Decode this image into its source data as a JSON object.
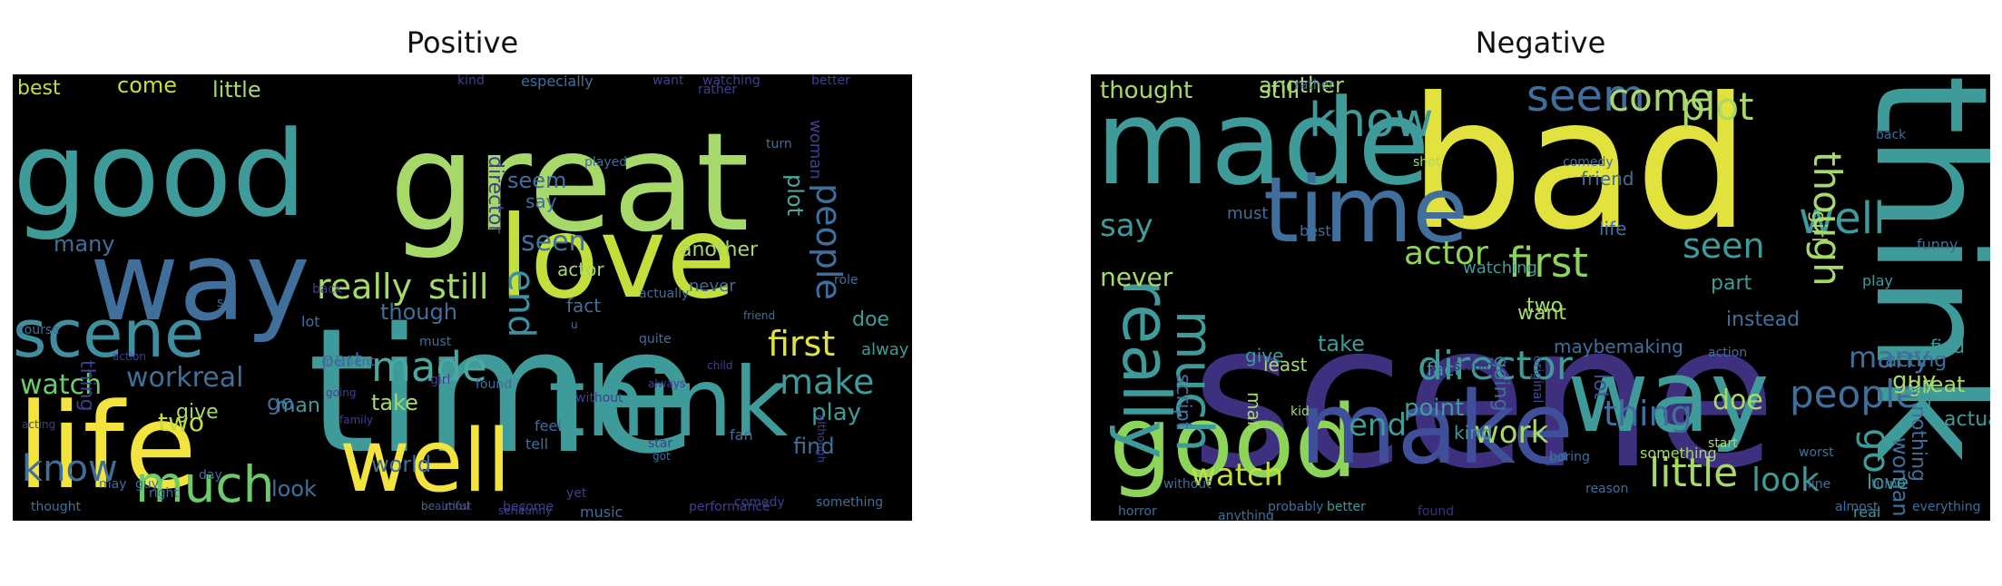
{
  "figure": {
    "panels": [
      {
        "title": "Positive",
        "words": [
          {
            "text": "time",
            "color": "#3f9a9a"
          },
          {
            "text": "great",
            "color": "#a6d96a"
          },
          {
            "text": "good",
            "color": "#3f9a9a"
          },
          {
            "text": "love",
            "color": "#c2df3b"
          },
          {
            "text": "life",
            "color": "#f2e33f"
          },
          {
            "text": "way",
            "color": "#3f6f9a"
          },
          {
            "text": "think",
            "color": "#3f9a9a"
          },
          {
            "text": "well",
            "color": "#f2e33f"
          },
          {
            "text": "scene",
            "color": "#3f8fa0"
          },
          {
            "text": "much",
            "color": "#6ccc6a"
          },
          {
            "text": "made",
            "color": "#4aa8a0"
          },
          {
            "text": "really",
            "color": "#a6d96a"
          },
          {
            "text": "still",
            "color": "#a6d96a"
          },
          {
            "text": "first",
            "color": "#e2e23f"
          },
          {
            "text": "make",
            "color": "#3f9a9a"
          },
          {
            "text": "people",
            "color": "#3f6f9a"
          },
          {
            "text": "know",
            "color": "#3f6f9a"
          },
          {
            "text": "end",
            "color": "#3f8fa0"
          },
          {
            "text": "seen",
            "color": "#3f6f9a"
          },
          {
            "text": "workreal",
            "color": "#3f6f9a"
          },
          {
            "text": "watch",
            "color": "#6ccc6a"
          },
          {
            "text": "two",
            "color": "#c2df3b"
          },
          {
            "text": "play",
            "color": "#3f9a9a"
          },
          {
            "text": "find",
            "color": "#3f6f9a"
          },
          {
            "text": "take",
            "color": "#a6d96a"
          },
          {
            "text": "though",
            "color": "#3f6f9a"
          },
          {
            "text": "man",
            "color": "#3f9a9a"
          },
          {
            "text": "give",
            "color": "#a6d96a"
          },
          {
            "text": "look",
            "color": "#3f6f9a"
          },
          {
            "text": "world",
            "color": "#3f6f9a"
          },
          {
            "text": "many",
            "color": "#3f6f9a"
          },
          {
            "text": "thing",
            "color": "#3f3f8f"
          },
          {
            "text": "best",
            "color": "#c2df3b"
          },
          {
            "text": "come",
            "color": "#c2df3b"
          },
          {
            "text": "little",
            "color": "#a6d96a"
          },
          {
            "text": "seem",
            "color": "#3f6f9a"
          },
          {
            "text": "say",
            "color": "#3f6f9a"
          },
          {
            "text": "plot",
            "color": "#4aa8a0"
          },
          {
            "text": "another",
            "color": "#a6d96a"
          },
          {
            "text": "part",
            "color": "#3f6f9a"
          },
          {
            "text": "director",
            "color": "#3f3f8f"
          },
          {
            "text": "actor",
            "color": "#a6d96a"
          },
          {
            "text": "doe",
            "color": "#3f9a9a"
          },
          {
            "text": "go",
            "color": "#3f6f9a"
          },
          {
            "text": "alway",
            "color": "#3f9a9a"
          },
          {
            "text": "never",
            "color": "#3f6f9a"
          },
          {
            "text": "fact",
            "color": "#3f6f9a"
          },
          {
            "text": "woman",
            "color": "#3f3f8f"
          },
          {
            "text": "lot",
            "color": "#3f6f9a"
          },
          {
            "text": "right",
            "color": "#3f6f9a"
          },
          {
            "text": "feel",
            "color": "#3f6f9a"
          },
          {
            "text": "tell",
            "color": "#3f6f9a"
          },
          {
            "text": "may",
            "color": "#3f6f9a"
          },
          {
            "text": "day",
            "color": "#3f6f9a"
          },
          {
            "text": "guy",
            "color": "#3f6f9a"
          },
          {
            "text": "course",
            "color": "#3f6f9a"
          },
          {
            "text": "role",
            "color": "#3f6f9a"
          },
          {
            "text": "fan",
            "color": "#3f6f9a"
          },
          {
            "text": "music",
            "color": "#3f6f9a"
          },
          {
            "text": "performance",
            "color": "#3f3f8f"
          },
          {
            "text": "comedy",
            "color": "#3f3f8f"
          },
          {
            "text": "something",
            "color": "#3f6f9a"
          },
          {
            "text": "thought",
            "color": "#3f6f9a"
          },
          {
            "text": "beautiful",
            "color": "#3f6f9a"
          },
          {
            "text": "almost",
            "color": "#3f3f8f"
          },
          {
            "text": "serie",
            "color": "#3f3f8f"
          },
          {
            "text": "funny",
            "color": "#3f3f8f"
          },
          {
            "text": "family",
            "color": "#3f3f8f"
          },
          {
            "text": "quite",
            "color": "#3f6f9a"
          },
          {
            "text": "actually",
            "color": "#3f6f9a"
          },
          {
            "text": "must",
            "color": "#3f6f9a"
          },
          {
            "text": "moment",
            "color": "#3f6f9a"
          },
          {
            "text": "found",
            "color": "#3f6f9a"
          },
          {
            "text": "girl",
            "color": "#3f3f8f"
          },
          {
            "text": "yet",
            "color": "#3f3f8f"
          },
          {
            "text": "got",
            "color": "#3f6f9a"
          },
          {
            "text": "action",
            "color": "#3f3f8f"
          },
          {
            "text": "acting",
            "color": "#3f3f8f"
          },
          {
            "text": "always",
            "color": "#3f3f8f"
          },
          {
            "text": "going",
            "color": "#3f3f8f"
          },
          {
            "text": "although",
            "color": "#3f3f8f"
          },
          {
            "text": "child",
            "color": "#3f3f8f"
          },
          {
            "text": "friend",
            "color": "#3f6f9a"
          },
          {
            "text": "especially",
            "color": "#3f6f9a"
          },
          {
            "text": "rather",
            "color": "#3f3f8f"
          },
          {
            "text": "want",
            "color": "#3f3f8f"
          },
          {
            "text": "watching",
            "color": "#3f3f8f"
          },
          {
            "text": "better",
            "color": "#3f3f8f"
          },
          {
            "text": "turn",
            "color": "#3f6f9a"
          },
          {
            "text": "played",
            "color": "#3f6f9a"
          },
          {
            "text": "set",
            "color": "#3f6f9a"
          },
          {
            "text": "back",
            "color": "#3f3f8f"
          },
          {
            "text": "kind",
            "color": "#3f3f8f"
          },
          {
            "text": "become",
            "color": "#3f3f8f"
          },
          {
            "text": "without",
            "color": "#3f3f8f"
          },
          {
            "text": "star",
            "color": "#3f3f8f"
          },
          {
            "text": "u",
            "color": "#3f6f9a"
          }
        ]
      },
      {
        "title": "Negative",
        "words": [
          {
            "text": "scene",
            "color": "#3f2f7f"
          },
          {
            "text": "bad",
            "color": "#e2e23f"
          },
          {
            "text": "think",
            "color": "#3f9a9a"
          },
          {
            "text": "made",
            "color": "#3f9a9a"
          },
          {
            "text": "good",
            "color": "#8cd45a"
          },
          {
            "text": "make",
            "color": "#3f4f9a"
          },
          {
            "text": "way",
            "color": "#3f9a9a"
          },
          {
            "text": "time",
            "color": "#3f6f9a"
          },
          {
            "text": "really",
            "color": "#3f9a9a"
          },
          {
            "text": "much",
            "color": "#3f9a9a"
          },
          {
            "text": "know",
            "color": "#3f9a9a"
          },
          {
            "text": "seem",
            "color": "#3f6f9a"
          },
          {
            "text": "come",
            "color": "#a6d96a"
          },
          {
            "text": "plot",
            "color": "#a6d96a"
          },
          {
            "text": "well",
            "color": "#3f9a9a"
          },
          {
            "text": "first",
            "color": "#8cd45a"
          },
          {
            "text": "actor",
            "color": "#8cd45a"
          },
          {
            "text": "seen",
            "color": "#3f9a9a"
          },
          {
            "text": "though",
            "color": "#a6d96a"
          },
          {
            "text": "director",
            "color": "#3f9a9a"
          },
          {
            "text": "end",
            "color": "#3f9a9a"
          },
          {
            "text": "work",
            "color": "#a6d96a"
          },
          {
            "text": "watch",
            "color": "#c2df3b"
          },
          {
            "text": "little",
            "color": "#a6d96a"
          },
          {
            "text": "look",
            "color": "#3f9a9a"
          },
          {
            "text": "people",
            "color": "#3f6f9a"
          },
          {
            "text": "thing",
            "color": "#3f6f9a"
          },
          {
            "text": "go",
            "color": "#3f9a9a"
          },
          {
            "text": "doe",
            "color": "#a6d96a"
          },
          {
            "text": "say",
            "color": "#3f9a9a"
          },
          {
            "text": "never",
            "color": "#a6d96a"
          },
          {
            "text": "thought",
            "color": "#a6d96a"
          },
          {
            "text": "still",
            "color": "#a6d96a"
          },
          {
            "text": "another",
            "color": "#a6d96a"
          },
          {
            "text": "woman",
            "color": "#3f6f9a"
          },
          {
            "text": "many",
            "color": "#3f6f9a"
          },
          {
            "text": "great",
            "color": "#a6d96a"
          },
          {
            "text": "actually",
            "color": "#3f9a9a"
          },
          {
            "text": "guy",
            "color": "#a6d96a"
          },
          {
            "text": "find",
            "color": "#3f9a9a"
          },
          {
            "text": "part",
            "color": "#3f9a9a"
          },
          {
            "text": "girl",
            "color": "#a6d96a"
          },
          {
            "text": "want",
            "color": "#a6d96a"
          },
          {
            "text": "two",
            "color": "#a6d96a"
          },
          {
            "text": "least",
            "color": "#a6d96a"
          },
          {
            "text": "take",
            "color": "#3f9a9a"
          },
          {
            "text": "fact",
            "color": "#3f9a9a"
          },
          {
            "text": "point",
            "color": "#3f9a9a"
          },
          {
            "text": "kind",
            "color": "#3f9a9a"
          },
          {
            "text": "lot",
            "color": "#3f4f9a"
          },
          {
            "text": "give",
            "color": "#3f9a9a"
          },
          {
            "text": "man",
            "color": "#a6d96a"
          },
          {
            "text": "instead",
            "color": "#3f6f9a"
          },
          {
            "text": "script",
            "color": "#3f6f9a"
          },
          {
            "text": "maybemaking",
            "color": "#3f6f9a"
          },
          {
            "text": "going",
            "color": "#3f6f9a"
          },
          {
            "text": "watching",
            "color": "#3f9a9a"
          },
          {
            "text": "life",
            "color": "#3f6f9a"
          },
          {
            "text": "friend",
            "color": "#3f6f9a"
          },
          {
            "text": "play",
            "color": "#3f9a9a"
          },
          {
            "text": "funny",
            "color": "#3f6f9a"
          },
          {
            "text": "acting",
            "color": "#3f6f9a"
          },
          {
            "text": "nothing",
            "color": "#3f6f9a"
          },
          {
            "text": "set",
            "color": "#3f9a9a"
          },
          {
            "text": "real",
            "color": "#3f9a9a"
          },
          {
            "text": "love",
            "color": "#3f9a9a"
          },
          {
            "text": "something",
            "color": "#a6d96a"
          },
          {
            "text": "anything",
            "color": "#3f6f9a"
          },
          {
            "text": "probably",
            "color": "#3f6f9a"
          },
          {
            "text": "found",
            "color": "#3f2f7f"
          },
          {
            "text": "reason",
            "color": "#3f6f9a"
          },
          {
            "text": "horror",
            "color": "#3f6f9a"
          },
          {
            "text": "without",
            "color": "#3f6f9a"
          },
          {
            "text": "better",
            "color": "#3f9a9a"
          },
          {
            "text": "kid",
            "color": "#a6d96a"
          },
          {
            "text": "best",
            "color": "#3f6f9a"
          },
          {
            "text": "must",
            "color": "#3f6f9a"
          },
          {
            "text": "shot",
            "color": "#a6d96a"
          },
          {
            "text": "start",
            "color": "#a6d96a"
          },
          {
            "text": "line",
            "color": "#3f6f9a"
          },
          {
            "text": "back",
            "color": "#3f6f9a"
          },
          {
            "text": "rather",
            "color": "#3f6f9a"
          },
          {
            "text": "comedy",
            "color": "#3f6f9a"
          },
          {
            "text": "action",
            "color": "#3f6f9a"
          },
          {
            "text": "worst",
            "color": "#3f6f9a"
          },
          {
            "text": "original",
            "color": "#3f4f9a"
          },
          {
            "text": "almost",
            "color": "#3f6f9a"
          },
          {
            "text": "everything",
            "color": "#3f6f9a"
          },
          {
            "text": "stupid",
            "color": "#3f2f7f"
          },
          {
            "text": "boring",
            "color": "#3f6f9a"
          },
          {
            "text": "turn",
            "color": "#3f6f9a"
          },
          {
            "text": "u",
            "color": "#3f9a9a"
          }
        ]
      }
    ]
  }
}
